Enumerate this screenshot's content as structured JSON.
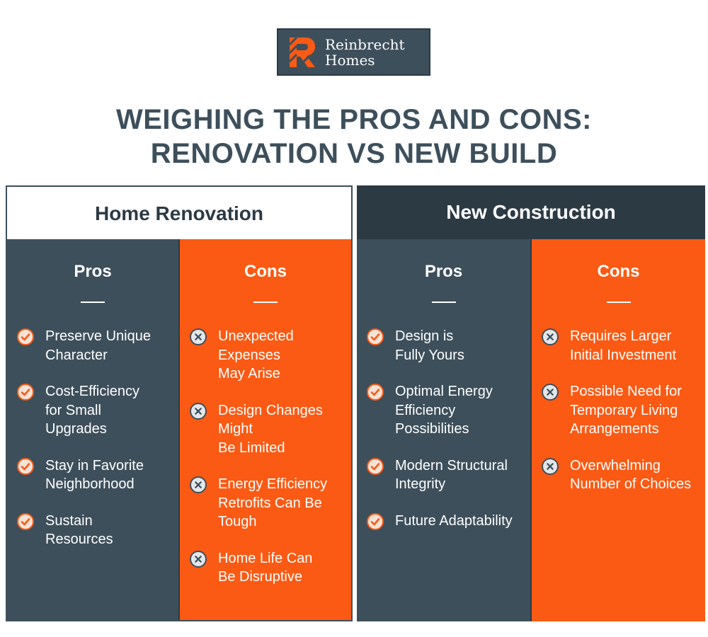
{
  "brand": {
    "line1": "Reinbrecht",
    "line2": "Homes"
  },
  "title": {
    "line1": "WEIGHING THE PROS AND CONS:",
    "line2": "RENOVATION VS NEW BUILD"
  },
  "colors": {
    "slate": "#3d4f5b",
    "dark": "#2c3a44",
    "orange": "#fb5a14"
  },
  "renovation": {
    "heading": "Home Renovation",
    "pros": {
      "label": "Pros",
      "items": [
        {
          "icon": "check-circle-icon",
          "lines": [
            "Preserve Unique",
            "Character"
          ]
        },
        {
          "icon": "check-circle-icon",
          "lines": [
            "Cost-Efficiency",
            "for Small",
            "Upgrades"
          ]
        },
        {
          "icon": "check-circle-icon",
          "lines": [
            "Stay in Favorite",
            "Neighborhood"
          ]
        },
        {
          "icon": "check-circle-icon",
          "lines": [
            "Sustain",
            "Resources"
          ]
        }
      ]
    },
    "cons": {
      "label": "Cons",
      "items": [
        {
          "icon": "x-circle-icon",
          "lines": [
            "Unexpected",
            "Expenses",
            "May Arise"
          ]
        },
        {
          "icon": "x-circle-icon",
          "lines": [
            "Design Changes",
            "Might",
            "Be Limited"
          ]
        },
        {
          "icon": "x-circle-icon",
          "lines": [
            "Energy Efficiency",
            "Retrofits Can Be",
            "Tough"
          ]
        },
        {
          "icon": "x-circle-icon",
          "lines": [
            "Home Life Can",
            "Be Disruptive"
          ]
        }
      ]
    }
  },
  "construction": {
    "heading": "New Construction",
    "pros": {
      "label": "Pros",
      "items": [
        {
          "icon": "check-circle-icon",
          "lines": [
            "Design is",
            "Fully Yours"
          ]
        },
        {
          "icon": "check-circle-icon",
          "lines": [
            "Optimal Energy",
            "Efficiency",
            "Possibilities"
          ]
        },
        {
          "icon": "check-circle-icon",
          "lines": [
            "Modern Structural",
            "Integrity"
          ]
        },
        {
          "icon": "check-circle-icon",
          "lines": [
            "Future Adaptability"
          ]
        }
      ]
    },
    "cons": {
      "label": "Cons",
      "items": [
        {
          "icon": "x-circle-icon",
          "lines": [
            "Requires Larger",
            "Initial Investment"
          ]
        },
        {
          "icon": "x-circle-icon",
          "lines": [
            "Possible Need for",
            "Temporary Living",
            "Arrangements"
          ]
        },
        {
          "icon": "x-circle-icon",
          "lines": [
            "Overwhelming",
            "Number of Choices"
          ]
        }
      ]
    }
  }
}
